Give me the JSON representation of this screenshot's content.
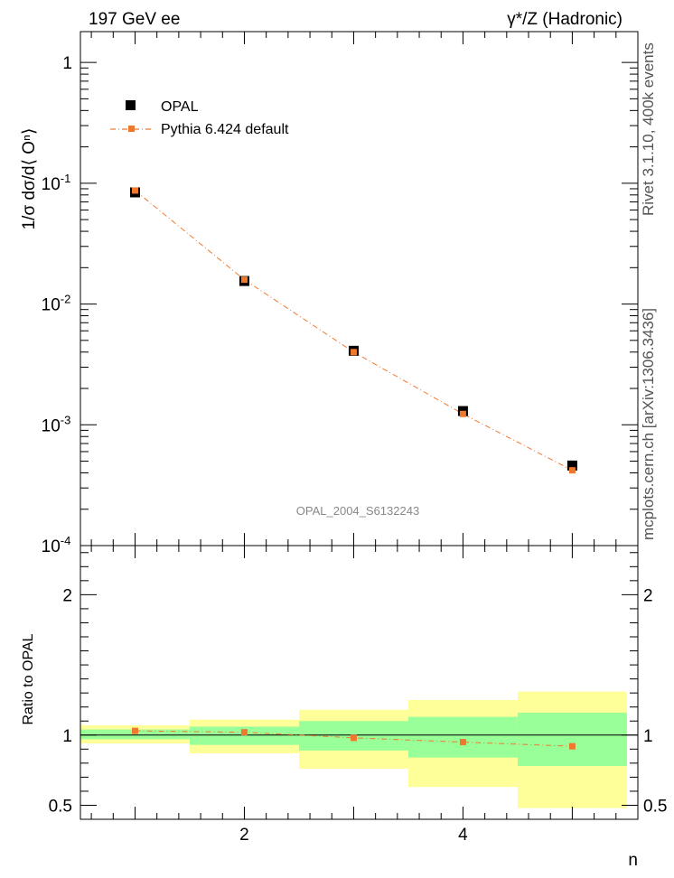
{
  "header": {
    "left": "197 GeV ee",
    "right": "γ*/Z (Hadronic)"
  },
  "side_labels": {
    "rivet": "Rivet 3.1.10,  400k events",
    "mcplots": "mcplots.cern.ch [arXiv:1306.3436]"
  },
  "analysis_label": "OPAL_2004_S6132243",
  "chart_data": [
    {
      "type": "scatter",
      "panel": "main",
      "ylabel": "1/σ dσ/d⟨ Oⁿ⟩",
      "yscale": "log",
      "ylim": [
        0.0001,
        1.8
      ],
      "xlim": [
        0.5,
        5.6
      ],
      "yticks": [
        {
          "value": 1,
          "label": "1"
        },
        {
          "value": 0.1,
          "label": "10^-1"
        },
        {
          "value": 0.01,
          "label": "10^-2"
        },
        {
          "value": 0.001,
          "label": "10^-3"
        },
        {
          "value": 0.0001,
          "label": "10^-4"
        }
      ],
      "legend": {
        "placement": "top-left",
        "entries": [
          "OPAL",
          "Pythia 6.424 default"
        ]
      },
      "series": [
        {
          "name": "OPAL",
          "color": "#000000",
          "marker": "square",
          "x": [
            1,
            2,
            3,
            4,
            5
          ],
          "y": [
            0.084,
            0.0155,
            0.0041,
            0.0013,
            0.00046
          ]
        },
        {
          "name": "Pythia 6.424 default",
          "color": "#f0782d",
          "marker": "square",
          "line": "dash-dot",
          "x": [
            1,
            2,
            3,
            4,
            5
          ],
          "y": [
            0.087,
            0.0159,
            0.004,
            0.00123,
            0.00042
          ]
        }
      ]
    },
    {
      "type": "line",
      "panel": "ratio",
      "ylabel": "Ratio to OPAL",
      "xlabel": "n",
      "ylim": [
        0.4,
        2.35
      ],
      "xlim": [
        0.5,
        5.6
      ],
      "xticks": [
        {
          "value": 2,
          "label": "2"
        },
        {
          "value": 4,
          "label": "4"
        }
      ],
      "yticks": [
        {
          "value": 0.5,
          "label": "0.5"
        },
        {
          "value": 1,
          "label": "1"
        },
        {
          "value": 2,
          "label": "2"
        }
      ],
      "bands": [
        {
          "x0": 0.5,
          "x1": 1.5,
          "stat_lo": 0.97,
          "stat_hi": 1.04,
          "tot_lo": 0.94,
          "tot_hi": 1.07
        },
        {
          "x0": 1.5,
          "x1": 2.5,
          "stat_lo": 0.93,
          "stat_hi": 1.06,
          "tot_lo": 0.87,
          "tot_hi": 1.11
        },
        {
          "x0": 2.5,
          "x1": 3.5,
          "stat_lo": 0.89,
          "stat_hi": 1.1,
          "tot_lo": 0.76,
          "tot_hi": 1.18
        },
        {
          "x0": 3.5,
          "x1": 4.5,
          "stat_lo": 0.84,
          "stat_hi": 1.13,
          "tot_lo": 0.63,
          "tot_hi": 1.25
        },
        {
          "x0": 4.5,
          "x1": 5.5,
          "stat_lo": 0.78,
          "stat_hi": 1.16,
          "tot_lo": 0.48,
          "tot_hi": 1.31
        }
      ],
      "band_colors": {
        "stat": "#99ff99",
        "total": "#ffff99"
      },
      "series": [
        {
          "name": "Pythia 6.424 default",
          "color": "#f0782d",
          "marker": "square",
          "line": "dash-dot",
          "x": [
            1,
            2,
            3,
            4,
            5
          ],
          "y": [
            1.03,
            1.02,
            0.98,
            0.95,
            0.92
          ]
        }
      ]
    }
  ]
}
